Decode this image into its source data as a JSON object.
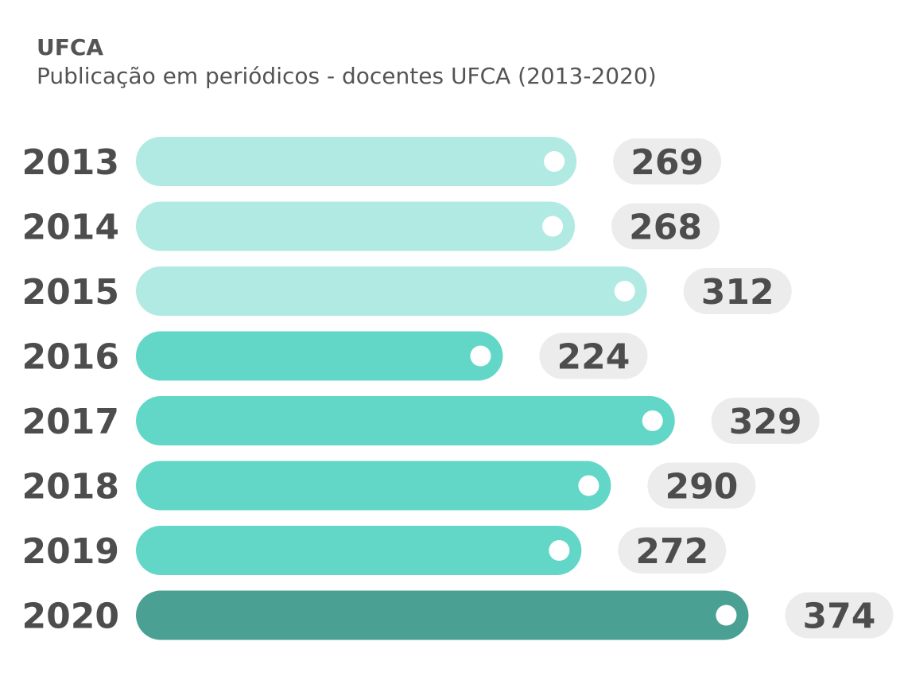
{
  "header": {
    "title": "UFCA",
    "subtitle": "Publicação em periódicos - docentes UFCA (2013-2020)"
  },
  "colors": {
    "light": "#b1eae2",
    "medium": "#63d7c7",
    "dark": "#4aa193",
    "pill": "#ececec",
    "text": "#4d4d4d",
    "dot": "#ffffff"
  },
  "chart_data": {
    "type": "bar",
    "orientation": "horizontal",
    "title": "Publicação em periódicos - docentes UFCA (2013-2020)",
    "categories": [
      "2013",
      "2014",
      "2015",
      "2016",
      "2017",
      "2018",
      "2019",
      "2020"
    ],
    "values": [
      269,
      268,
      312,
      224,
      329,
      290,
      272,
      374
    ],
    "bar_color_groups": [
      "light",
      "light",
      "light",
      "medium",
      "medium",
      "medium",
      "medium",
      "dark"
    ],
    "data_labels": [
      "269",
      "268",
      "312",
      "224",
      "329",
      "290",
      "272",
      "374"
    ],
    "xlabel": "",
    "ylabel": "",
    "grid": false
  }
}
